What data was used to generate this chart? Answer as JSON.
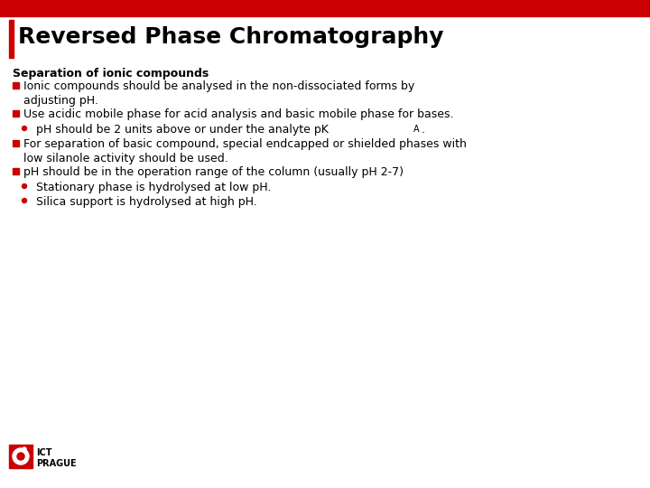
{
  "title": "Reversed Phase Chromatography",
  "title_color": "#000000",
  "title_fontsize": 18,
  "red_bar_color": "#CC0000",
  "top_stripe_color": "#CC0000",
  "background_color": "#FFFFFF",
  "section_title": "Separation of ionic compounds",
  "section_title_fontsize": 9,
  "body_fontsize": 9,
  "bullet_color": "#CC0000",
  "sub_bullet_color": "#CC0000",
  "text_color": "#000000",
  "bullets": [
    {
      "level": 1,
      "text": "Ionic compounds should be analysed in the non-dissociated forms by\nadjusting pH."
    },
    {
      "level": 1,
      "text": "Use acidic mobile phase for acid analysis and basic mobile phase for bases."
    },
    {
      "level": 2,
      "text_parts": [
        {
          "t": "pH should be 2 units above or under the analyte pK",
          "sub": false
        },
        {
          "t": "A",
          "sub": true
        },
        {
          "t": ".",
          "sub": false
        }
      ]
    },
    {
      "level": 1,
      "text": "For separation of basic compound, special endcapped or shielded phases with\nlow silanole activity should be used."
    },
    {
      "level": 1,
      "text": "pH should be in the operation range of the column (usually pH 2-7)"
    },
    {
      "level": 2,
      "text_parts": [
        {
          "t": "Stationary phase is hydrolysed at low pH.",
          "sub": false
        }
      ]
    },
    {
      "level": 2,
      "text_parts": [
        {
          "t": "Silica support is hydrolysed at high pH.",
          "sub": false
        }
      ]
    }
  ],
  "logo_text": "ICT\nPRAGUE",
  "logo_fontsize": 7
}
